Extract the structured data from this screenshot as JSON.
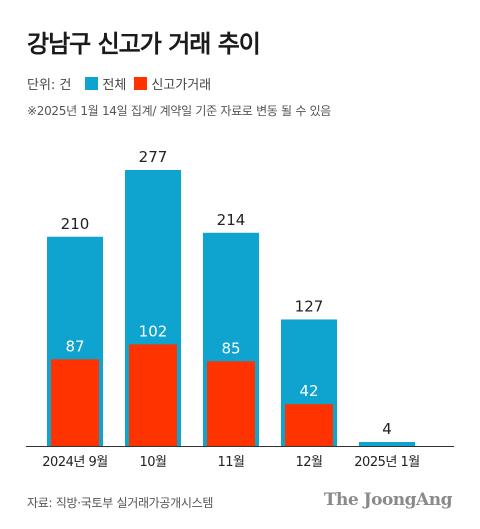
{
  "title": "강남구 신고가 거래 추이",
  "legend": {
    "unit": "단위: 건",
    "total_label": "전체",
    "new_high_label": "신고가거래"
  },
  "note": "※2025년 1월 14일 집계/ 계약일 기준 자료로 변동 될 수 있음",
  "source": "자료: 직방·국토부 실거래가공개시스템",
  "brand": "The JoongAng",
  "colors": {
    "total": "#0fa3cf",
    "new_high": "#ff3300",
    "baseline": "#333333",
    "text": "#222222"
  },
  "chart_data": {
    "type": "bar",
    "categories": [
      "2024년 9월",
      "10월",
      "11월",
      "12월",
      "2025년 1월"
    ],
    "series": [
      {
        "name": "전체",
        "values": [
          210,
          277,
          214,
          127,
          4
        ]
      },
      {
        "name": "신고가거래",
        "values": [
          87,
          102,
          85,
          42,
          null
        ]
      }
    ],
    "ylim": [
      0,
      277
    ],
    "grid": false,
    "legend_position": "top-left"
  }
}
